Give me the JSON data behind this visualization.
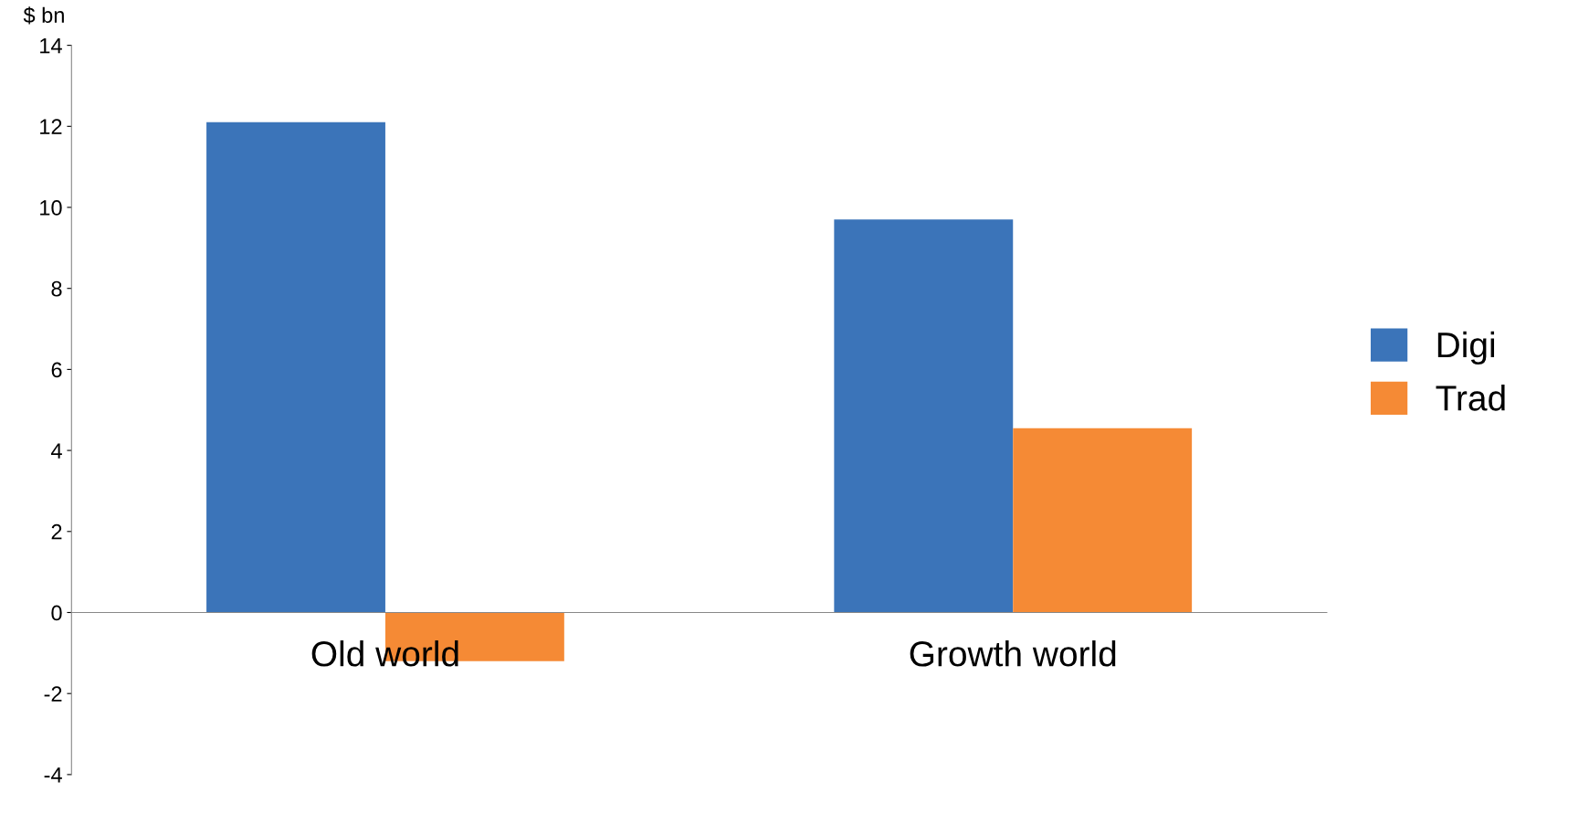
{
  "chart_data": {
    "type": "bar",
    "ylabel": "$ bn",
    "categories": [
      "Old world",
      "Growth world"
    ],
    "series": [
      {
        "name": "Digi",
        "color": "#3b74b9",
        "values": [
          12.1,
          9.7
        ]
      },
      {
        "name": "Trad",
        "color": "#f58a35",
        "values": [
          -1.2,
          4.55
        ]
      }
    ],
    "ylim": [
      -4,
      14
    ],
    "yticks": [
      -4,
      -2,
      0,
      2,
      4,
      6,
      8,
      10,
      12,
      14
    ],
    "grid": false,
    "legend": "right"
  }
}
